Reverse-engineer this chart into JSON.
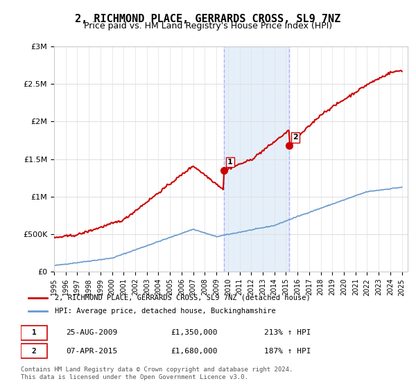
{
  "title": "2, RICHMOND PLACE, GERRARDS CROSS, SL9 7NZ",
  "subtitle": "Price paid vs. HM Land Registry's House Price Index (HPI)",
  "title_fontsize": 11,
  "subtitle_fontsize": 9,
  "ylabel_ticks": [
    "£0",
    "£500K",
    "£1M",
    "£1.5M",
    "£2M",
    "£2.5M",
    "£3M"
  ],
  "ytick_vals": [
    0,
    500000,
    1000000,
    1500000,
    2000000,
    2500000,
    3000000
  ],
  "ylim": [
    0,
    3000000
  ],
  "xlim_start": 1995.0,
  "xlim_end": 2025.5,
  "background_color": "#ffffff",
  "plot_bg_color": "#ffffff",
  "grid_color": "#e0e0e0",
  "transaction1": {
    "date_x": 2009.65,
    "price": 1350000,
    "label": "1"
  },
  "transaction2": {
    "date_x": 2015.27,
    "price": 1680000,
    "label": "2"
  },
  "shade_color": "#cce0f5",
  "dashed_color": "#b0b0ff",
  "legend_label_red": "2, RICHMOND PLACE, GERRARDS CROSS, SL9 7NZ (detached house)",
  "legend_label_blue": "HPI: Average price, detached house, Buckinghamshire",
  "table_row1": [
    "1",
    "25-AUG-2009",
    "£1,350,000",
    "213% ↑ HPI"
  ],
  "table_row2": [
    "2",
    "07-APR-2015",
    "£1,680,000",
    "187% ↑ HPI"
  ],
  "footer": "Contains HM Land Registry data © Crown copyright and database right 2024.\nThis data is licensed under the Open Government Licence v3.0.",
  "red_line_color": "#cc0000",
  "blue_line_color": "#6699cc",
  "marker_color_red": "#cc0000",
  "marker_color_blue": "#6699cc"
}
